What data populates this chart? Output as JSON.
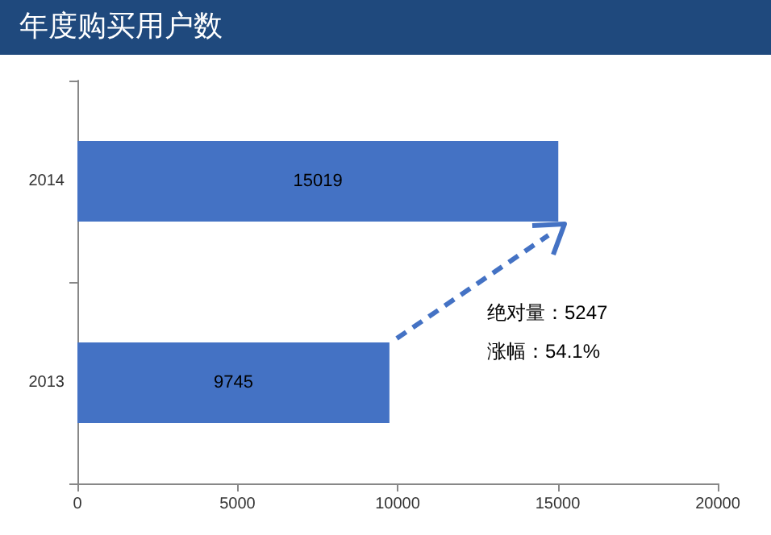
{
  "chart_data": {
    "type": "bar",
    "orientation": "horizontal",
    "title": "年度购买用户数",
    "categories": [
      "2014",
      "2013"
    ],
    "series": [
      {
        "color": "#4472c4",
        "values": [
          15019,
          9745
        ]
      }
    ],
    "xlim": [
      0,
      20000
    ],
    "xticks": [
      0,
      5000,
      10000,
      15000,
      20000
    ],
    "data_labels": true,
    "annotations": [
      "绝对量：5247",
      "涨幅：54.1%"
    ]
  }
}
